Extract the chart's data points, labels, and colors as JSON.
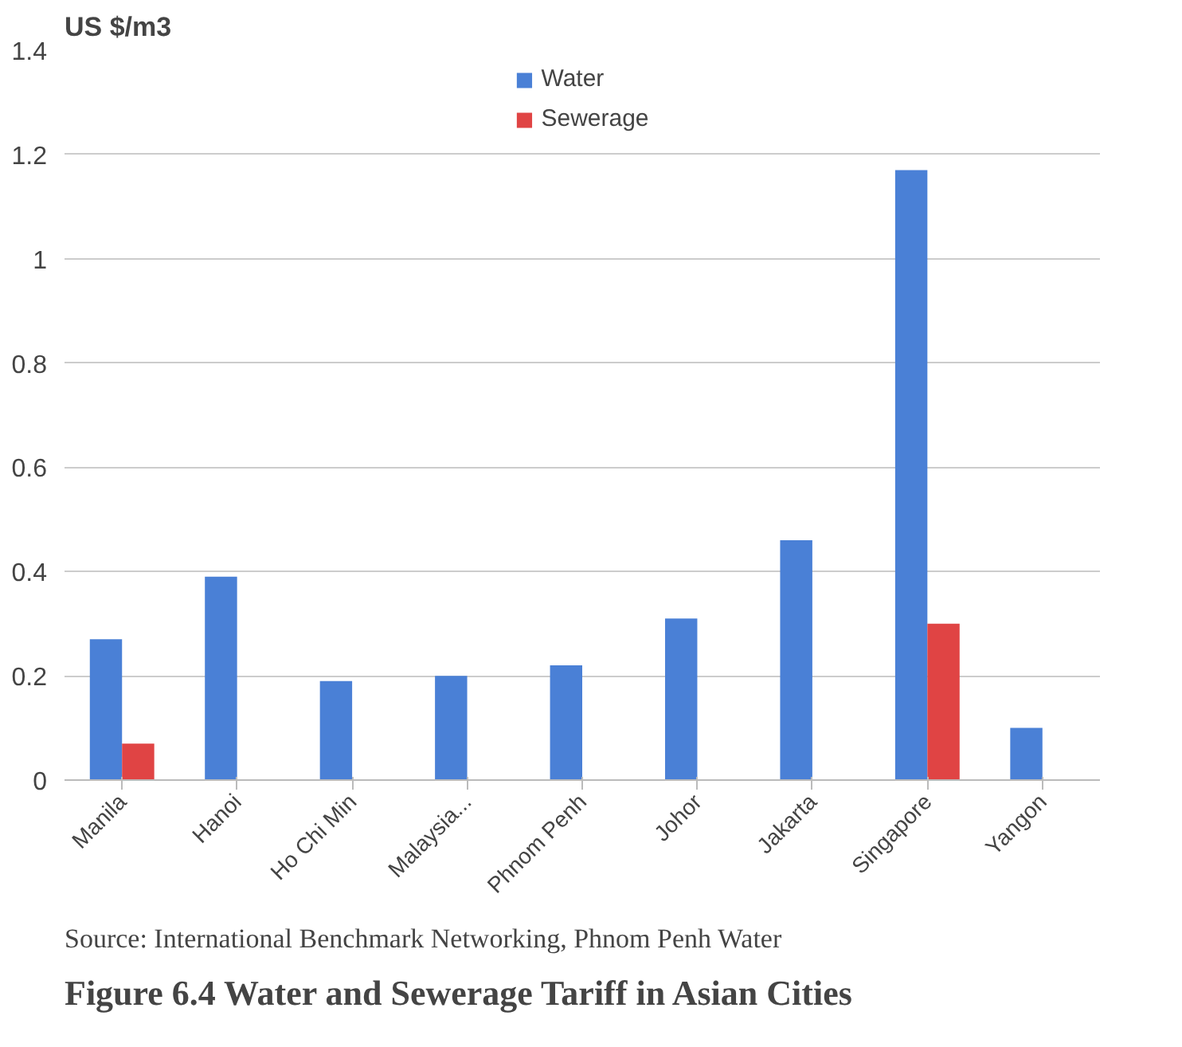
{
  "chart_data": {
    "type": "bar",
    "title": "Figure 6.4    Water and Sewerage Tariff in Asian Cities",
    "ylabel": "US $/m3",
    "categories": [
      "Manila",
      "Hanoi",
      "Ho Chi Min",
      "Malaysia...",
      "Phnom Penh",
      "Johor",
      "Jakarta",
      "Singapore",
      "Yangon"
    ],
    "series": [
      {
        "name": "Water",
        "color": "#4a80d6",
        "values": [
          0.27,
          0.39,
          0.19,
          0.2,
          0.22,
          0.31,
          0.46,
          1.17,
          0.1
        ]
      },
      {
        "name": "Sewerage",
        "color": "#e04444",
        "values": [
          0.07,
          null,
          null,
          null,
          null,
          null,
          null,
          0.3,
          null
        ]
      }
    ],
    "ylim": [
      0,
      1.4
    ],
    "yticks": [
      {
        "value": 0,
        "label": "0"
      },
      0.2,
      0.4,
      0.6,
      0.8,
      {
        "value": 1,
        "label": "1"
      },
      1.2,
      1.4
    ],
    "grid": "y",
    "legend": "top",
    "annotations": [
      "Source: International Benchmark Networking, Phnom Penh Water"
    ]
  }
}
